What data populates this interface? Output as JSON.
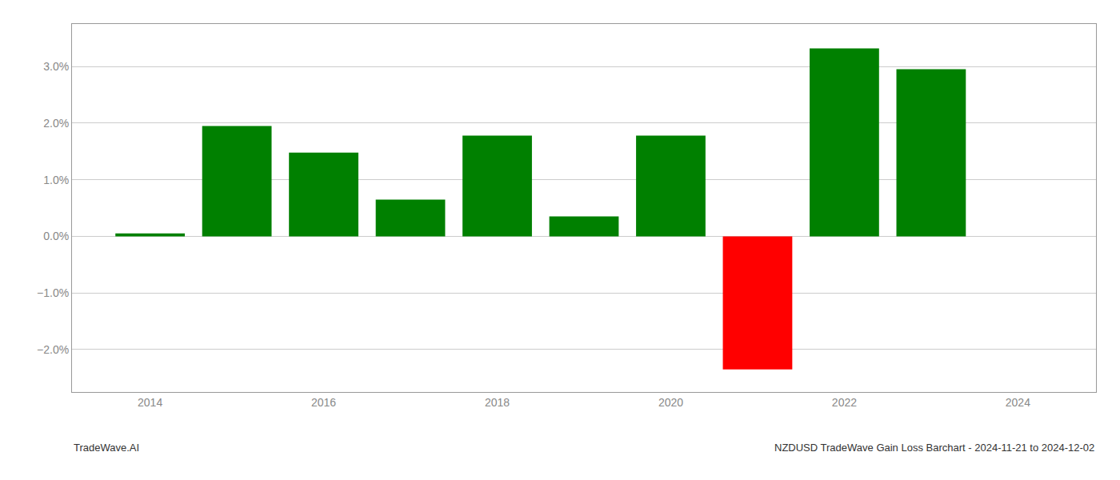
{
  "chart_data": {
    "type": "bar",
    "title": "NZDUSD TradeWave Gain Loss Barchart - 2024-11-21 to 2024-12-02",
    "annotations": [
      "TradeWave.AI"
    ],
    "x": [
      2014,
      2015,
      2016,
      2017,
      2018,
      2019,
      2020,
      2021,
      2022,
      2023
    ],
    "values": [
      0.05,
      1.95,
      1.48,
      0.65,
      1.78,
      0.35,
      1.78,
      -2.35,
      3.32,
      2.95
    ],
    "colors": [
      "#008000",
      "#008000",
      "#008000",
      "#008000",
      "#008000",
      "#008000",
      "#008000",
      "#ff0000",
      "#008000",
      "#008000"
    ],
    "xlim": [
      2013.1,
      2024.9
    ],
    "xticks": [
      2014,
      2016,
      2018,
      2020,
      2022,
      2024
    ],
    "ylim": [
      -2.75,
      3.75
    ],
    "yticks": [
      {
        "value": -2.0,
        "label": "−2.0%"
      },
      {
        "value": -1.0,
        "label": "−1.0%"
      },
      {
        "value": 0.0,
        "label": "0.0%"
      },
      {
        "value": 1.0,
        "label": "1.0%"
      },
      {
        "value": 2.0,
        "label": "2.0%"
      },
      {
        "value": 3.0,
        "label": "3.0%"
      }
    ],
    "grid": true
  }
}
